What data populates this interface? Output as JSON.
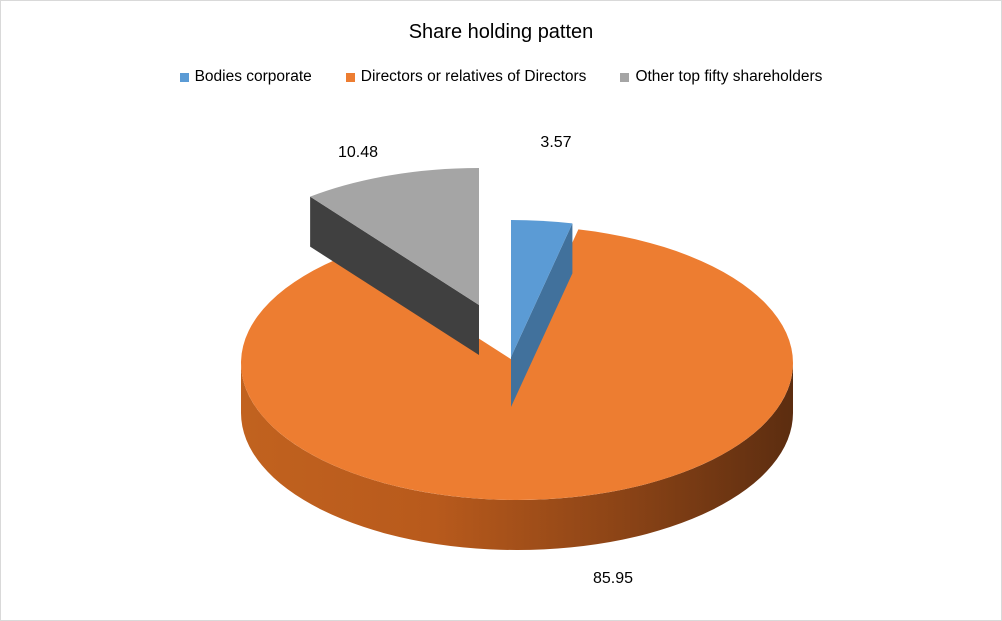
{
  "chart_data": {
    "type": "pie",
    "title": "Share holding patten",
    "legend_position": "top",
    "categories": [
      "Bodies corporate",
      "Directors or relatives of Directors",
      "Other top fifty shareholders"
    ],
    "values": [
      3.57,
      85.95,
      10.48
    ],
    "value_labels": [
      "3.57",
      "85.95",
      "10.48"
    ],
    "colors": [
      "#5b9bd5",
      "#ed7d31",
      "#a5a5a5"
    ],
    "exploded": [
      true,
      false,
      true
    ],
    "style": "3d"
  }
}
